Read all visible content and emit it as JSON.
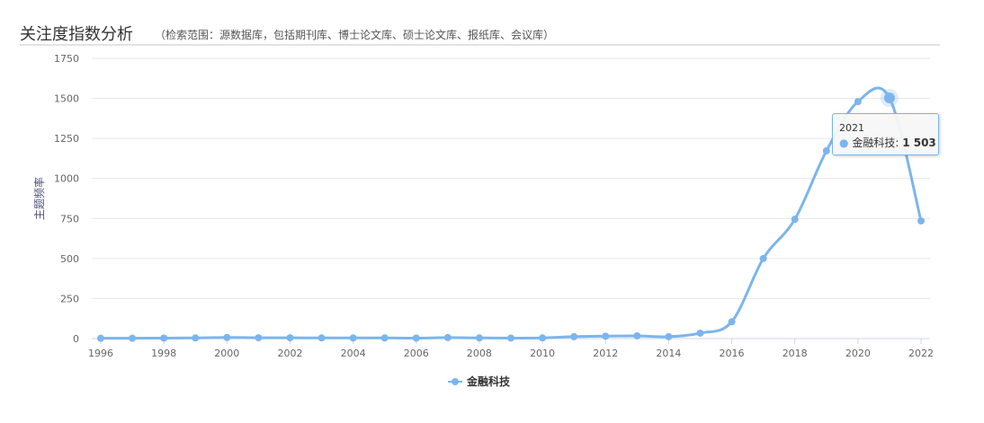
{
  "header": {
    "title": "关注度指数分析",
    "subtitle": "（检索范围：源数据库，包括期刊库、博士论文库、硕士论文库、报纸库、会议库）"
  },
  "tooltip": {
    "year": "2021",
    "series": "金融科技",
    "value": "1 503"
  },
  "chart_data": {
    "type": "line",
    "title": "",
    "ylabel": "主题频率",
    "xlabel": "",
    "ylim": [
      0,
      1750
    ],
    "yticks": [
      0,
      250,
      500,
      750,
      1000,
      1250,
      1500,
      1750
    ],
    "xticks": [
      1996,
      1998,
      2000,
      2002,
      2004,
      2006,
      2008,
      2010,
      2012,
      2014,
      2016,
      2018,
      2020,
      2022
    ],
    "grid": true,
    "legend": "bottom-center",
    "color": "#7cb5ec",
    "x": [
      1996,
      1997,
      1998,
      1999,
      2000,
      2001,
      2002,
      2003,
      2004,
      2005,
      2006,
      2007,
      2008,
      2009,
      2010,
      2011,
      2012,
      2013,
      2014,
      2015,
      2016,
      2017,
      2018,
      2019,
      2020,
      2021,
      2022
    ],
    "series": [
      {
        "name": "金融科技",
        "values": [
          2,
          2,
          3,
          4,
          7,
          5,
          5,
          4,
          4,
          4,
          3,
          6,
          4,
          3,
          4,
          12,
          15,
          17,
          12,
          34,
          105,
          500,
          745,
          1172,
          1480,
          1503,
          735
        ]
      }
    ]
  }
}
